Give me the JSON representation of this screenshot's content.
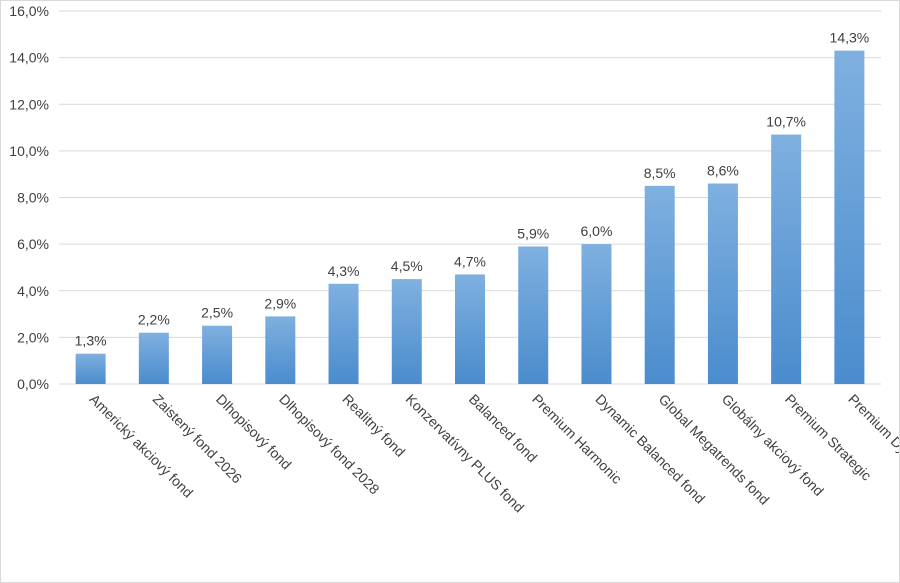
{
  "chart_data": {
    "type": "bar",
    "title": "",
    "xlabel": "",
    "ylabel": "",
    "ylim": [
      0,
      16
    ],
    "yticks": [
      "0,0%",
      "2,0%",
      "4,0%",
      "6,0%",
      "8,0%",
      "10,0%",
      "12,0%",
      "14,0%",
      "16,0%"
    ],
    "grid": true,
    "legend": "none",
    "bar_color_top": "#7fb0e0",
    "bar_color_bottom": "#4a8ccd",
    "categories": [
      "Americký akciový fond",
      "Zaistený fond 2026",
      "Dlhopisový fond",
      "Dlhopisový fond 2028",
      "Realitný fond",
      "Konzervatívny PLUS fond",
      "Balanced fond",
      "Premium Harmonic",
      "Dynamic Balanced fond",
      "Global Megatrends fond",
      "Globálny akciový fond",
      "Premium Strategic",
      "Premium Dynamic"
    ],
    "values": [
      1.3,
      2.2,
      2.5,
      2.9,
      4.3,
      4.5,
      4.7,
      5.9,
      6.0,
      8.5,
      8.6,
      10.7,
      14.3
    ],
    "data_labels": [
      "1,3%",
      "2,2%",
      "2,5%",
      "2,9%",
      "4,3%",
      "4,5%",
      "4,7%",
      "5,9%",
      "6,0%",
      "8,5%",
      "8,6%",
      "10,7%",
      "14,3%"
    ]
  }
}
